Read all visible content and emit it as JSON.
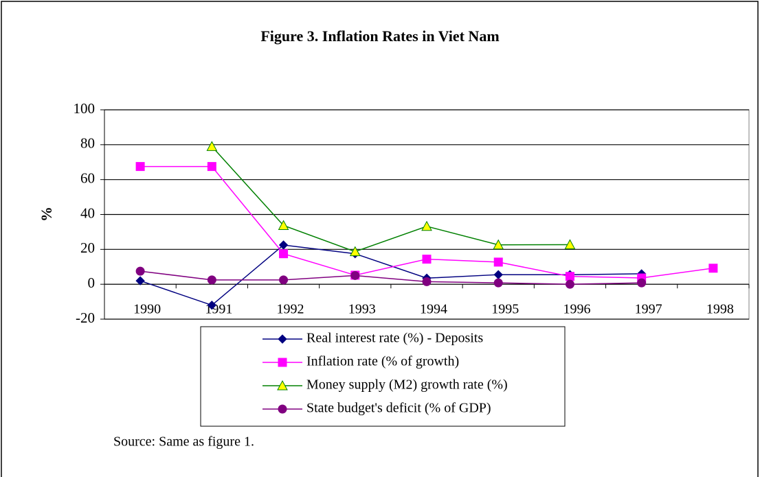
{
  "chart_data": {
    "type": "line",
    "title": "Figure 3. Inflation Rates in Viet Nam",
    "y_label": "%",
    "source": "Source: Same as figure 1.",
    "categories": [
      "1990",
      "1991",
      "1992",
      "1993",
      "1994",
      "1995",
      "1996",
      "1997",
      "1998"
    ],
    "ylim": [
      -20,
      100
    ],
    "yticks": [
      -20,
      0,
      20,
      40,
      60,
      80,
      100
    ],
    "grid": true,
    "series": [
      {
        "name": "Real interest rate (%) - Deposits",
        "color": "#000080",
        "marker": "diamond",
        "marker_color": "#000080",
        "values": [
          2,
          -12,
          22.5,
          17.5,
          3.5,
          5.5,
          5.5,
          6,
          null
        ]
      },
      {
        "name": "Inflation rate (% of growth)",
        "color": "#ff00ff",
        "marker": "square",
        "marker_color": "#ff00ff",
        "values": [
          67.5,
          67.5,
          17.5,
          5.2,
          14.4,
          12.7,
          4.5,
          3.6,
          9.2
        ]
      },
      {
        "name": "Money supply  (M2) growth rate (%)",
        "color": "#008000",
        "marker": "triangle",
        "marker_color": "#ffff00",
        "values": [
          null,
          79,
          33.7,
          18.7,
          33.2,
          22.6,
          22.7,
          null,
          null
        ]
      },
      {
        "name": "State budget's deficit (% of GDP)",
        "color": "#800080",
        "marker": "circle",
        "marker_color": "#800080",
        "values": [
          7.5,
          2.5,
          2.5,
          5,
          1.5,
          0.8,
          0,
          0.8,
          null
        ]
      }
    ]
  }
}
